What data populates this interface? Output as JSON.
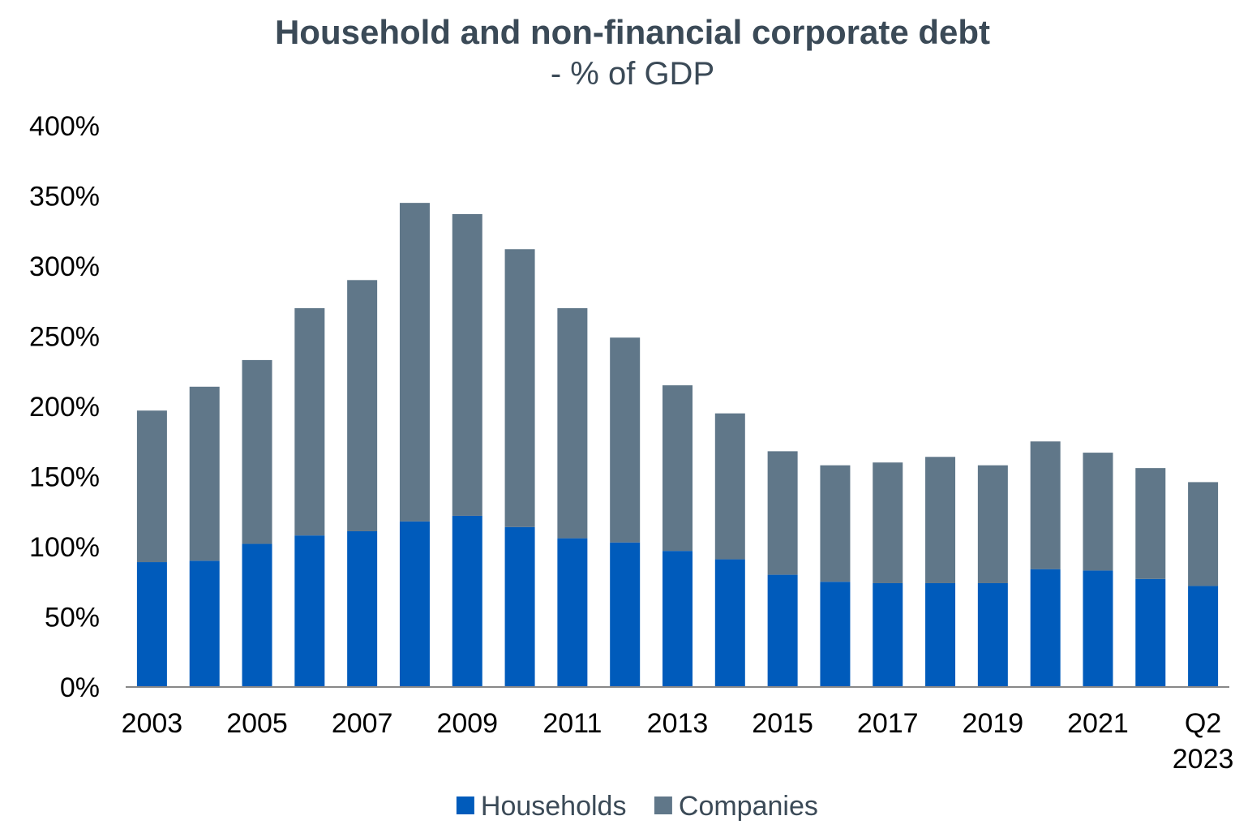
{
  "chart_data": {
    "type": "bar",
    "stacked": true,
    "title": "Household and non-financial corporate debt",
    "subtitle": "- % of GDP",
    "categories": [
      "2003",
      "2004",
      "2005",
      "2006",
      "2007",
      "2008",
      "2009",
      "2010",
      "2011",
      "2012",
      "2013",
      "2014",
      "2015",
      "2016",
      "2017",
      "2018",
      "2019",
      "2020",
      "2021",
      "2022",
      "Q2 2023"
    ],
    "x_tick_labels": [
      {
        "index": 0,
        "lines": [
          "2003"
        ]
      },
      {
        "index": 2,
        "lines": [
          "2005"
        ]
      },
      {
        "index": 4,
        "lines": [
          "2007"
        ]
      },
      {
        "index": 6,
        "lines": [
          "2009"
        ]
      },
      {
        "index": 8,
        "lines": [
          "2011"
        ]
      },
      {
        "index": 10,
        "lines": [
          "2013"
        ]
      },
      {
        "index": 12,
        "lines": [
          "2015"
        ]
      },
      {
        "index": 14,
        "lines": [
          "2017"
        ]
      },
      {
        "index": 16,
        "lines": [
          "2019"
        ]
      },
      {
        "index": 18,
        "lines": [
          "2021"
        ]
      },
      {
        "index": 20,
        "lines": [
          "Q2",
          "2023"
        ]
      }
    ],
    "y_tick_labels": [
      "0%",
      "50%",
      "100%",
      "150%",
      "200%",
      "250%",
      "300%",
      "350%",
      "400%"
    ],
    "ylim": [
      0,
      400
    ],
    "y_unit": "%",
    "grid": false,
    "legend_position": "bottom",
    "series": [
      {
        "name": "Households",
        "color": "#005bbb",
        "values": [
          89,
          90,
          102,
          108,
          111,
          118,
          122,
          114,
          106,
          103,
          97,
          91,
          80,
          75,
          74,
          74,
          74,
          84,
          83,
          77,
          72
        ]
      },
      {
        "name": "Companies",
        "color": "#607789",
        "values": [
          108,
          124,
          131,
          162,
          179,
          227,
          215,
          198,
          164,
          146,
          118,
          104,
          88,
          83,
          86,
          90,
          84,
          91,
          84,
          79,
          74
        ]
      }
    ]
  }
}
